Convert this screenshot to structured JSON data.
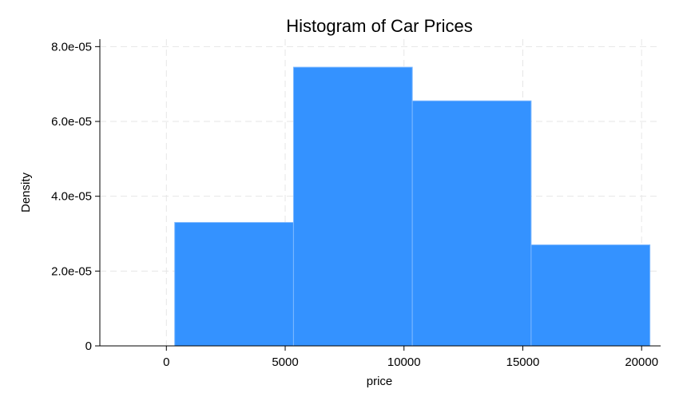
{
  "chart_data": {
    "type": "bar",
    "title": "Histogram of Car Prices",
    "xlabel": "price",
    "ylabel": "Density",
    "xlim": [
      -2800,
      20800
    ],
    "ylim": [
      0,
      8.2e-05
    ],
    "xticks": [
      0,
      5000,
      10000,
      15000,
      20000
    ],
    "xtick_labels": [
      "0",
      "5000",
      "10000",
      "15000",
      "20000"
    ],
    "yticks": [
      0,
      2e-05,
      4e-05,
      6e-05,
      8e-05
    ],
    "ytick_labels": [
      "0",
      "2.0e-05",
      "4.0e-05",
      "6.0e-05",
      "8.0e-05"
    ],
    "grid": true,
    "bar_color": "#3492ff",
    "bar_edge_color": "#7db8ff",
    "bins": [
      {
        "x0": 350,
        "x1": 5350,
        "density": 3.3e-05
      },
      {
        "x0": 5350,
        "x1": 10350,
        "density": 7.45e-05
      },
      {
        "x0": 10350,
        "x1": 15350,
        "density": 6.55e-05
      },
      {
        "x0": 15350,
        "x1": 20350,
        "density": 2.7e-05
      }
    ]
  }
}
